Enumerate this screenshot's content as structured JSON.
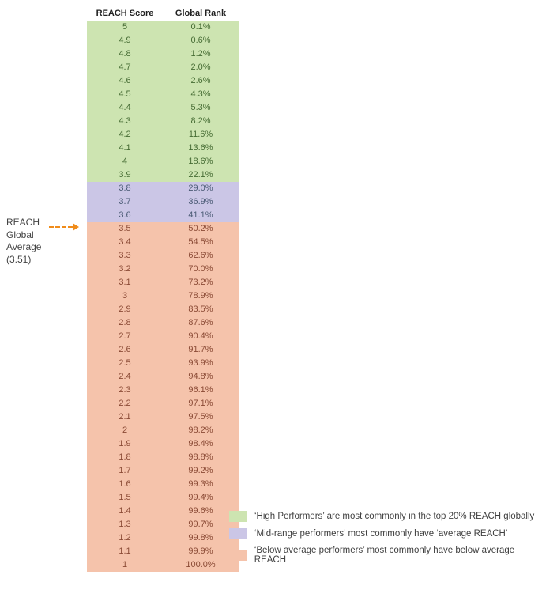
{
  "annotation": {
    "line1": "REACH",
    "line2": "Global",
    "line3": "Average",
    "line4": "(3.51)"
  },
  "headers": {
    "score": "REACH Score",
    "rank": "Global Rank"
  },
  "tiers": {
    "high": {
      "color": "#cde4b1"
    },
    "mid": {
      "color": "#cbc6e6"
    },
    "low": {
      "color": "#f5c3ab"
    }
  },
  "rows": [
    {
      "score": "5",
      "rank": "0.1%",
      "tier": "high"
    },
    {
      "score": "4.9",
      "rank": "0.6%",
      "tier": "high"
    },
    {
      "score": "4.8",
      "rank": "1.2%",
      "tier": "high"
    },
    {
      "score": "4.7",
      "rank": "2.0%",
      "tier": "high"
    },
    {
      "score": "4.6",
      "rank": "2.6%",
      "tier": "high"
    },
    {
      "score": "4.5",
      "rank": "4.3%",
      "tier": "high"
    },
    {
      "score": "4.4",
      "rank": "5.3%",
      "tier": "high"
    },
    {
      "score": "4.3",
      "rank": "8.2%",
      "tier": "high"
    },
    {
      "score": "4.2",
      "rank": "11.6%",
      "tier": "high"
    },
    {
      "score": "4.1",
      "rank": "13.6%",
      "tier": "high"
    },
    {
      "score": "4",
      "rank": "18.6%",
      "tier": "high"
    },
    {
      "score": "3.9",
      "rank": "22.1%",
      "tier": "high"
    },
    {
      "score": "3.8",
      "rank": "29.0%",
      "tier": "mid"
    },
    {
      "score": "3.7",
      "rank": "36.9%",
      "tier": "mid"
    },
    {
      "score": "3.6",
      "rank": "41.1%",
      "tier": "mid"
    },
    {
      "score": "3.5",
      "rank": "50.2%",
      "tier": "low"
    },
    {
      "score": "3.4",
      "rank": "54.5%",
      "tier": "low"
    },
    {
      "score": "3.3",
      "rank": "62.6%",
      "tier": "low"
    },
    {
      "score": "3.2",
      "rank": "70.0%",
      "tier": "low"
    },
    {
      "score": "3.1",
      "rank": "73.2%",
      "tier": "low"
    },
    {
      "score": "3",
      "rank": "78.9%",
      "tier": "low"
    },
    {
      "score": "2.9",
      "rank": "83.5%",
      "tier": "low"
    },
    {
      "score": "2.8",
      "rank": "87.6%",
      "tier": "low"
    },
    {
      "score": "2.7",
      "rank": "90.4%",
      "tier": "low"
    },
    {
      "score": "2.6",
      "rank": "91.7%",
      "tier": "low"
    },
    {
      "score": "2.5",
      "rank": "93.9%",
      "tier": "low"
    },
    {
      "score": "2.4",
      "rank": "94.8%",
      "tier": "low"
    },
    {
      "score": "2.3",
      "rank": "96.1%",
      "tier": "low"
    },
    {
      "score": "2.2",
      "rank": "97.1%",
      "tier": "low"
    },
    {
      "score": "2.1",
      "rank": "97.5%",
      "tier": "low"
    },
    {
      "score": "2",
      "rank": "98.2%",
      "tier": "low"
    },
    {
      "score": "1.9",
      "rank": "98.4%",
      "tier": "low"
    },
    {
      "score": "1.8",
      "rank": "98.8%",
      "tier": "low"
    },
    {
      "score": "1.7",
      "rank": "99.2%",
      "tier": "low"
    },
    {
      "score": "1.6",
      "rank": "99.3%",
      "tier": "low"
    },
    {
      "score": "1.5",
      "rank": "99.4%",
      "tier": "low"
    },
    {
      "score": "1.4",
      "rank": "99.6%",
      "tier": "low"
    },
    {
      "score": "1.3",
      "rank": "99.7%",
      "tier": "low"
    },
    {
      "score": "1.2",
      "rank": "99.8%",
      "tier": "low"
    },
    {
      "score": "1.1",
      "rank": "99.9%",
      "tier": "low"
    },
    {
      "score": "1",
      "rank": "100.0%",
      "tier": "low"
    }
  ],
  "legend": {
    "high": "‘High Performers’ are most commonly in the top 20% REACH globally",
    "mid": "‘Mid-range performers’ most commonly have ‘average REACH’",
    "low": "‘Below average performers’ most commonly have below average REACH"
  }
}
